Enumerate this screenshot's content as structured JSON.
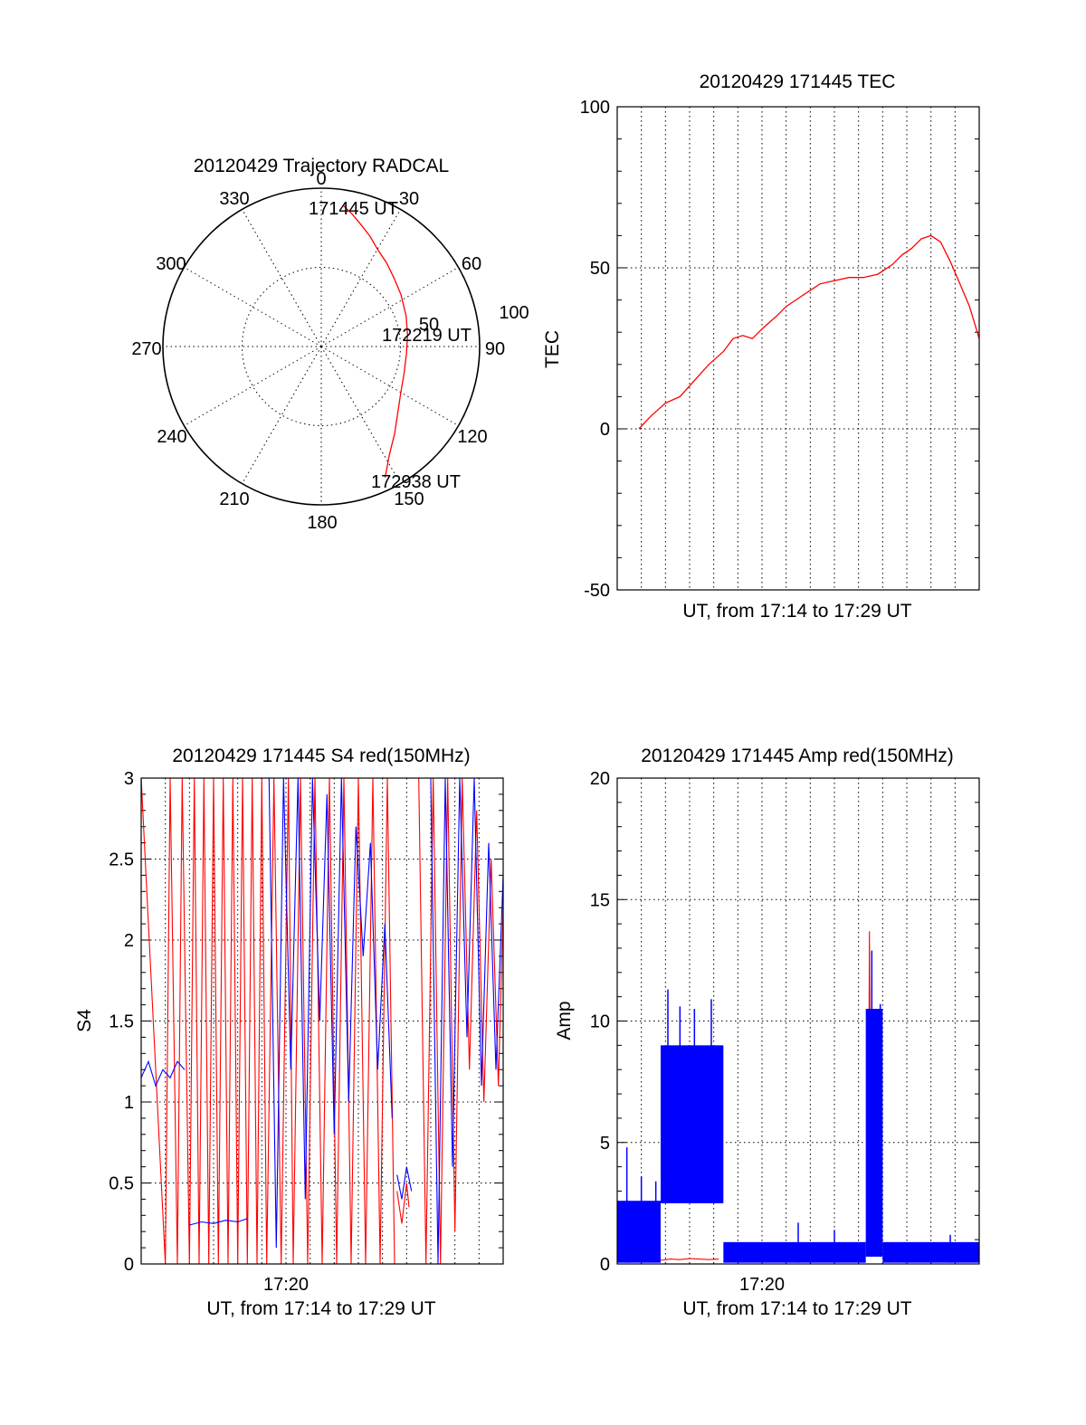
{
  "chart_data": [
    {
      "id": "trajectory",
      "type": "scatter",
      "projection": "polar",
      "title": "20120429 Trajectory RADCAL",
      "azimuth_labels": [
        "0",
        "30",
        "60",
        "90",
        "120",
        "150",
        "180",
        "210",
        "240",
        "270",
        "300",
        "330"
      ],
      "radial_labels": [
        "50",
        "100"
      ],
      "radial_range": [
        0,
        100
      ],
      "grid": true,
      "series": [
        {
          "color": "#ff0000",
          "azimuth": [
            9,
            13,
            18,
            24,
            30,
            38,
            47,
            57,
            70,
            82,
            95,
            108,
            120,
            131,
            140,
            148,
            154
          ],
          "radius": [
            90,
            86,
            81,
            76,
            71,
            67,
            63,
            60,
            57,
            55,
            54,
            55,
            58,
            64,
            72,
            81,
            92
          ]
        }
      ],
      "annotations": [
        {
          "text": "171445 UT",
          "azimuth": 9,
          "radius": 90
        },
        {
          "text": "172219 UT",
          "azimuth": 82,
          "radius": 55
        },
        {
          "text": "172938 UT",
          "azimuth": 154,
          "radius": 92
        }
      ]
    },
    {
      "id": "tec",
      "type": "line",
      "title": "20120429 171445 TEC",
      "xlabel": "UT, from 17:14 to 17:29 UT",
      "ylabel": "TEC",
      "xlim": [
        0,
        15
      ],
      "ylim": [
        -50,
        100
      ],
      "yticks": [
        -50,
        0,
        50,
        100
      ],
      "xticks": [],
      "grid": true,
      "series": [
        {
          "color": "#ff0000",
          "x": [
            0.9,
            1.4,
            2.0,
            2.6,
            3.2,
            3.8,
            4.4,
            4.8,
            5.2,
            5.6,
            6.0,
            6.6,
            7.0,
            7.6,
            8.0,
            8.4,
            9.0,
            9.6,
            10.2,
            10.8,
            11.4,
            11.8,
            12.2,
            12.6,
            13.0,
            13.4,
            13.8,
            14.2,
            14.6,
            15.0
          ],
          "y": [
            0,
            4,
            8,
            10,
            15,
            20,
            24,
            28,
            29,
            28,
            31,
            35,
            38,
            41,
            43,
            45,
            46,
            47,
            47,
            48,
            51,
            54,
            56,
            59,
            60,
            58,
            52,
            45,
            38,
            28
          ]
        }
      ]
    },
    {
      "id": "s4",
      "type": "line",
      "title": "20120429 171445 S4 red(150MHz)",
      "xlabel": "UT, from 17:14 to 17:29 UT",
      "ylabel": "S4",
      "xlim": [
        0,
        15
      ],
      "ylim": [
        0,
        3
      ],
      "yticks": [
        0,
        0.5,
        1,
        1.5,
        2,
        2.5,
        3
      ],
      "ytick_labels": [
        "0",
        "0.5",
        "1",
        "1.5",
        "2",
        "2.5",
        "3"
      ],
      "xticks": [
        6
      ],
      "xtick_labels": [
        "17:20"
      ],
      "grid": true,
      "series": [
        {
          "color": "#ff0000",
          "segments": [
            {
              "x": [
                0.0,
                1.0,
                1.2,
                1.5,
                1.7,
                2.0,
                2.2,
                2.4,
                2.6,
                2.8,
                3.0,
                3.2,
                3.4,
                3.6,
                3.8,
                4.0,
                4.2,
                4.4,
                4.6,
                4.8,
                5.0,
                5.2,
                5.5,
                5.8,
                6.1,
                6.3,
                6.6,
                6.9,
                7.2,
                7.5,
                7.8,
                8.1,
                8.4,
                8.7,
                9.0,
                9.3,
                9.6,
                9.9,
                10.2,
                10.5
              ],
              "y": [
                3,
                0,
                3,
                0,
                3,
                0,
                3,
                0,
                3,
                0,
                3,
                0,
                3,
                0,
                3,
                0,
                3,
                0,
                3,
                0,
                3,
                0,
                3,
                0,
                3,
                0,
                3,
                0,
                3,
                0,
                3,
                0,
                3,
                0,
                3,
                0,
                3,
                0,
                3,
                0
              ]
            },
            {
              "x": [
                10.6,
                10.8,
                11.0,
                11.1
              ],
              "y": [
                0.45,
                0.25,
                0.5,
                0.35
              ]
            },
            {
              "x": [
                11.5,
                11.8,
                12.1,
                12.4,
                12.7,
                13.0,
                13.3,
                13.6,
                13.9,
                14.2,
                14.5,
                14.8,
                15.0
              ],
              "y": [
                3,
                0,
                3,
                0,
                3,
                0.2,
                3,
                1.2,
                2.8,
                1.0,
                2.5,
                1.1,
                2.2
              ]
            }
          ]
        },
        {
          "color": "#0000ff",
          "segments": [
            {
              "x": [
                0.0,
                0.3,
                0.6,
                0.9,
                1.2,
                1.5,
                1.8
              ],
              "y": [
                1.15,
                1.25,
                1.1,
                1.2,
                1.15,
                1.25,
                1.2
              ]
            },
            {
              "x": [
                2.0,
                2.5,
                3.0,
                3.5,
                4.0,
                4.4
              ],
              "y": [
                0.24,
                0.26,
                0.25,
                0.27,
                0.26,
                0.28
              ]
            },
            {
              "x": [
                5.3,
                5.6,
                5.9,
                6.2,
                6.5,
                6.8,
                7.1,
                7.4,
                7.7,
                8.0,
                8.3,
                8.6,
                8.9,
                9.2,
                9.5,
                9.8,
                10.1,
                10.4
              ],
              "y": [
                3,
                0.1,
                3,
                1.2,
                3,
                0.4,
                3,
                1.5,
                2.9,
                0.8,
                3,
                1.0,
                2.7,
                1.9,
                2.6,
                1.2,
                2.1,
                0.9
              ]
            },
            {
              "x": [
                10.6,
                10.8,
                11.0,
                11.2
              ],
              "y": [
                0.55,
                0.4,
                0.6,
                0.45
              ]
            },
            {
              "x": [
                12.0,
                12.3,
                12.6,
                12.9,
                13.2,
                13.5,
                13.8,
                14.1,
                14.4,
                14.7,
                15.0
              ],
              "y": [
                3,
                0,
                3,
                0.6,
                3,
                1.4,
                3,
                1.1,
                2.6,
                1.2,
                2.4
              ]
            }
          ]
        }
      ]
    },
    {
      "id": "amp",
      "type": "line",
      "title": "20120429 171445 Amp red(150MHz)",
      "xlabel": "UT, from 17:14 to 17:29 UT",
      "ylabel": "Amp",
      "xlim": [
        0,
        15
      ],
      "ylim": [
        0,
        20
      ],
      "yticks": [
        0,
        5,
        10,
        15,
        20
      ],
      "xticks": [
        6
      ],
      "xtick_labels": [
        "17:20"
      ],
      "grid": true,
      "series": [
        {
          "color": "#ff0000",
          "segments": [
            {
              "x": [
                1.8,
                2.2,
                2.6,
                3.0,
                3.4,
                3.8,
                4.2
              ],
              "y": [
                0.15,
                0.2,
                0.18,
                0.22,
                0.2,
                0.18,
                0.2
              ]
            },
            {
              "x": [
                10.4,
                10.45,
                10.5,
                10.55,
                10.6,
                10.65,
                10.7,
                10.75,
                10.8,
                10.85,
                10.9,
                10.95
              ],
              "y": [
                2.0,
                13.7,
                3.0,
                11.5,
                2.5,
                9.0,
                1.5,
                6.0,
                1.0,
                4.0,
                0.8,
                2.0
              ]
            }
          ]
        },
        {
          "color": "#0000ff",
          "bands": [
            {
              "x0": 0.0,
              "x1": 1.8,
              "lo": 0.05,
              "hi": 2.6,
              "spikes": [
                [
                  0.4,
                  4.8
                ],
                [
                  1.0,
                  3.6
                ],
                [
                  1.6,
                  3.4
                ]
              ]
            },
            {
              "x0": 1.8,
              "x1": 4.4,
              "lo": 2.5,
              "hi": 9.0,
              "spikes": [
                [
                  2.1,
                  11.3
                ],
                [
                  2.6,
                  10.6
                ],
                [
                  3.2,
                  10.5
                ],
                [
                  3.9,
                  10.9
                ]
              ]
            },
            {
              "x0": 4.4,
              "x1": 10.3,
              "lo": 0.05,
              "hi": 0.9,
              "spikes": [
                [
                  7.5,
                  1.7
                ],
                [
                  9.0,
                  1.4
                ]
              ]
            },
            {
              "x0": 10.3,
              "x1": 11.0,
              "lo": 0.3,
              "hi": 10.5,
              "spikes": [
                [
                  10.55,
                  12.9
                ],
                [
                  10.9,
                  10.7
                ]
              ]
            },
            {
              "x0": 11.0,
              "x1": 15.0,
              "lo": 0.05,
              "hi": 0.9,
              "spikes": [
                [
                  13.8,
                  1.2
                ]
              ]
            }
          ]
        }
      ]
    }
  ]
}
